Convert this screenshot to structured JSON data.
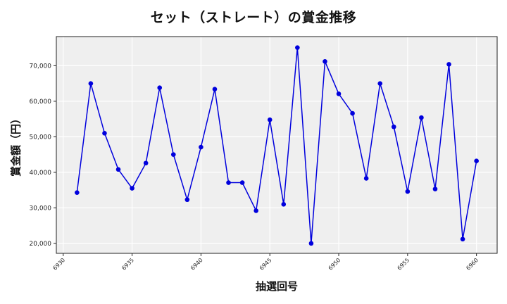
{
  "chart_data": {
    "type": "line",
    "title": "セット（ストレート）の賞金推移",
    "xlabel": "抽選回号",
    "ylabel": "賞金額（円）",
    "x": [
      6931,
      6932,
      6933,
      6934,
      6935,
      6936,
      6937,
      6938,
      6939,
      6940,
      6941,
      6942,
      6943,
      6944,
      6945,
      6946,
      6947,
      6948,
      6949,
      6950,
      6951,
      6952,
      6953,
      6954,
      6955,
      6956,
      6957,
      6958,
      6959,
      6960
    ],
    "series": [
      {
        "name": "賞金額",
        "color": "#0000dd",
        "marker": "circle",
        "values": [
          34300,
          65000,
          51000,
          40800,
          35500,
          42600,
          63800,
          45000,
          32300,
          47100,
          63400,
          37100,
          37100,
          29200,
          54800,
          31000,
          75100,
          20000,
          71200,
          62100,
          56600,
          38300,
          65000,
          52800,
          34600,
          55400,
          35300,
          70400,
          21200,
          43200
        ]
      }
    ],
    "xticks": [
      6930,
      6935,
      6940,
      6945,
      6950,
      6955,
      6960
    ],
    "xtick_labels": [
      "6930",
      "6935",
      "6940",
      "6945",
      "6950",
      "6955",
      "6960"
    ],
    "yticks": [
      20000,
      30000,
      40000,
      50000,
      60000,
      70000
    ],
    "ytick_labels": [
      "20,000",
      "30,000",
      "40,000",
      "50,000",
      "60,000",
      "70,000"
    ],
    "xlim": [
      6929.5,
      6961.5
    ],
    "ylim": [
      17200,
      78200
    ],
    "grid": true,
    "legend": null,
    "plot_background": "#efefef"
  }
}
